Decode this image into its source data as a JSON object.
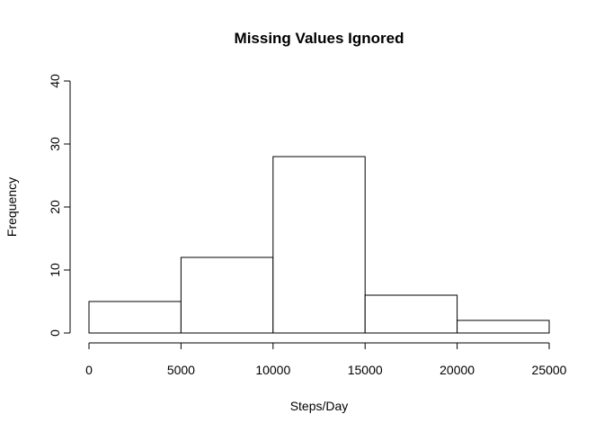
{
  "chart_data": {
    "type": "bar",
    "title": "Missing Values Ignored",
    "xlabel": "Steps/Day",
    "ylabel": "Frequency",
    "bins": [
      {
        "start": 0,
        "end": 5000,
        "count": 5
      },
      {
        "start": 5000,
        "end": 10000,
        "count": 12
      },
      {
        "start": 10000,
        "end": 15000,
        "count": 28
      },
      {
        "start": 15000,
        "end": 20000,
        "count": 6
      },
      {
        "start": 20000,
        "end": 25000,
        "count": 2
      }
    ],
    "xlim": [
      0,
      25000
    ],
    "ylim": [
      0,
      40
    ],
    "x_ticks": [
      0,
      5000,
      10000,
      15000,
      20000,
      25000
    ],
    "x_tick_labels": [
      "0",
      "5000",
      "10000",
      "15000",
      "20000",
      "25000"
    ],
    "y_ticks": [
      0,
      10,
      20,
      30,
      40
    ],
    "y_tick_labels": [
      "0",
      "10",
      "20",
      "30",
      "40"
    ],
    "grid": false,
    "colors": {
      "bar_fill": "#ffffff",
      "bar_stroke": "#000000"
    }
  }
}
